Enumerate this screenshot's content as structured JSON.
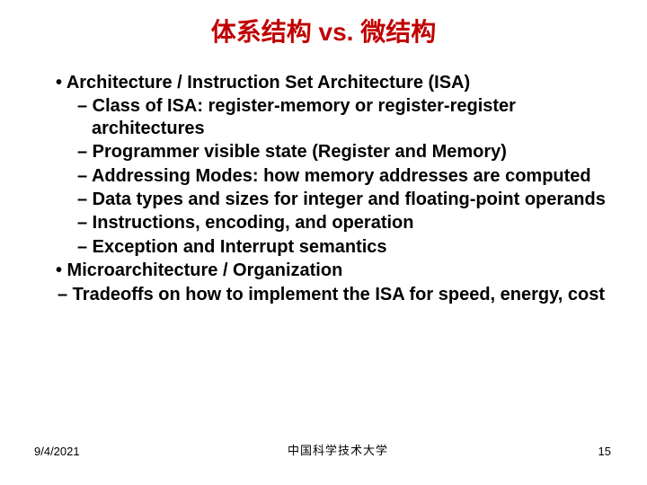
{
  "title": {
    "part1": "体系结构 ",
    "vs": "vs.",
    "part2": " 微结构",
    "color_main": "#c00000"
  },
  "bullets": {
    "l1_1": "• Architecture / Instruction Set Architecture (ISA)",
    "l2_1": "– Class of ISA: register-memory or register-register architectures",
    "l2_2": "– Programmer visible state (Register and Memory)",
    "l2_3": "– Addressing Modes: how memory addresses are computed",
    "l2_4": "– Data types and sizes for integer and floating-point operands",
    "l2_5": "– Instructions, encoding, and operation",
    "l2_6": "– Exception and Interrupt semantics",
    "l1_2": "• Microarchitecture / Organization",
    "l2_7": "– Tradeoffs on how to implement the ISA for speed, energy, cost"
  },
  "footer": {
    "date": "9/4/2021",
    "center": "中国科学技术大学",
    "page": "15"
  },
  "colors": {
    "title": "#c00000",
    "text": "#000000",
    "background": "#ffffff"
  },
  "fonts": {
    "title_size": 28,
    "body_size": 20,
    "footer_size": 13
  }
}
